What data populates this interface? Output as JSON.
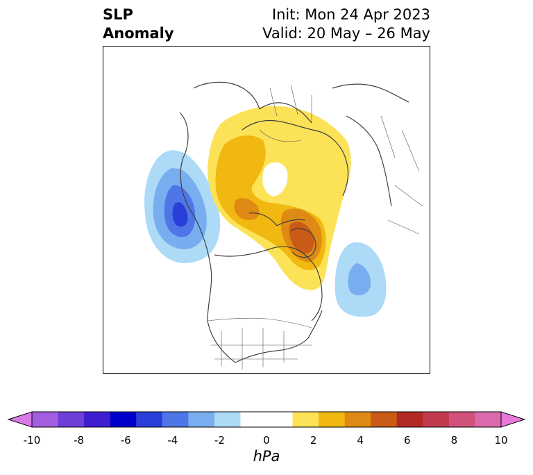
{
  "title": {
    "left_line1": "SLP",
    "left_line2": "Anomaly",
    "right_line1": "Init: Mon 24 Apr 2023",
    "right_line2": "Valid: 20 May – 26 May"
  },
  "colorbar": {
    "unit": "hPa",
    "ticks": [
      "-10",
      "-8",
      "-6",
      "-4",
      "-2",
      "0",
      "2",
      "4",
      "6",
      "8",
      "10"
    ],
    "colors": [
      "#d77ae8",
      "#a35de0",
      "#6e3fd9",
      "#3e1fd0",
      "#0000cc",
      "#2a3fd8",
      "#4f76e6",
      "#78aef0",
      "#acdaf7",
      "#ffffff",
      "#ffffff",
      "#fce257",
      "#f0b810",
      "#de8a14",
      "#c95a18",
      "#b32a25",
      "#c23a50",
      "#d0527a",
      "#db6aad",
      "#e878dc"
    ]
  },
  "map": {
    "projection": "north-polar-stereographic",
    "anomalies": [
      {
        "name": "positive-anomaly-greenland-arctic",
        "peak_hpa": 6
      },
      {
        "name": "negative-anomaly-gulf-of-alaska",
        "peak_hpa": -6
      },
      {
        "name": "negative-anomaly-north-atlantic",
        "peak_hpa": -3
      }
    ]
  }
}
